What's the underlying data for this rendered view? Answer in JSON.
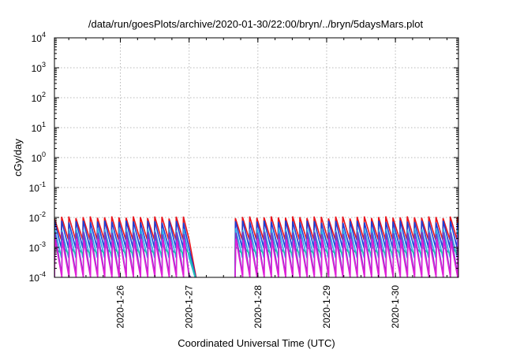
{
  "chart_data": {
    "type": "line",
    "title": "/data/run/goesPlots/archive/2020-01-30/22:00/bryn/../bryn/5daysMars.plot",
    "xlabel": "Coordinated Universal Time (UTC)",
    "ylabel": "cGy/day",
    "yscale": "log",
    "ylim": [
      0.0001,
      10000
    ],
    "xlim": [
      "2020-01-25T01:00",
      "2020-01-30T22:00"
    ],
    "grid": true,
    "y_ticks": [
      {
        "base": "10",
        "exp": "-4"
      },
      {
        "base": "10",
        "exp": "-3"
      },
      {
        "base": "10",
        "exp": "-2"
      },
      {
        "base": "10",
        "exp": "-1"
      },
      {
        "base": "10",
        "exp": "0"
      },
      {
        "base": "10",
        "exp": "1"
      },
      {
        "base": "10",
        "exp": "2"
      },
      {
        "base": "10",
        "exp": "3"
      },
      {
        "base": "10",
        "exp": "4"
      }
    ],
    "x_ticks": [
      {
        "label": "2020-1-26",
        "date": "2020-01-26T00:00"
      },
      {
        "label": "2020-1-27",
        "date": "2020-01-27T00:00"
      },
      {
        "label": "2020-1-28",
        "date": "2020-01-28T00:00"
      },
      {
        "label": "2020-1-29",
        "date": "2020-01-29T00:00"
      },
      {
        "label": "2020-1-30",
        "date": "2020-01-30T00:00"
      }
    ],
    "segments": [
      {
        "start": "2020-01-25T01:00",
        "end": "2020-01-27T00:00"
      },
      {
        "start": "2020-01-27T16:00",
        "end": "2020-01-30T22:00"
      }
    ],
    "sawtooth_period_hours": 2.5,
    "series": [
      {
        "color": "#e8141c",
        "peak": 0.01,
        "trough": 0.0018
      },
      {
        "color": "#1a3fd8",
        "peak": 0.0072,
        "trough": 0.00095
      },
      {
        "color": "#2aa8e8",
        "peak": 0.004,
        "trough": 0.00045
      },
      {
        "color": "#22c8a8",
        "peak": 0.0011,
        "trough": 0.0006
      },
      {
        "color": "#7a36c8",
        "peak": 0.003,
        "trough": 0.00012
      },
      {
        "color": "#e020d8",
        "peak": 0.0018,
        "trough": 0.0001
      }
    ]
  }
}
